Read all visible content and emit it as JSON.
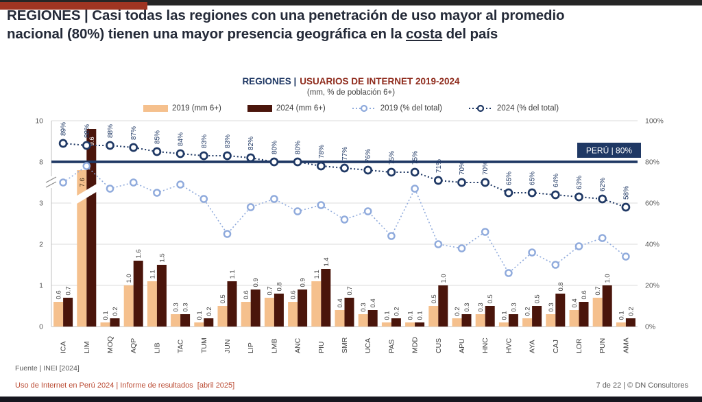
{
  "colors": {
    "top_bar": "#262626",
    "accent_red": "#A03522",
    "title_text": "#242A38",
    "chart_title_navy": "#1F3864",
    "chart_title_red": "#8E2A1B",
    "footer_red": "#BA4A32",
    "footer_gray": "#595959",
    "bottom_bar": "#16161F",
    "gridline": "#DBDBDB",
    "axis_line": "#BFBFBF",
    "value_label": "#404040",
    "pct_label": "#1F3864"
  },
  "header": {
    "line1": "REGIONES | Casi todas las regiones con una penetración de uso mayor al promedio",
    "line2_pre": "nacional (80%) tienen una mayor presencia geográfica en la ",
    "line2_underlined": "costa",
    "line2_post": " del país"
  },
  "chart": {
    "title_prefix": "REGIONES |",
    "title_main": "USUARIOS DE INTERNET 2019-2024",
    "subtitle": "(mm, % de población 6+)"
  },
  "chart_data": {
    "type": "combo-bar-line",
    "title": "REGIONES | USUARIOS DE INTERNET 2019-2024",
    "subtitle": "(mm, % de población 6+)",
    "categories": [
      "ICA",
      "LIM",
      "MOQ",
      "AQP",
      "LIB",
      "TAC",
      "TUM",
      "JUN",
      "LIP",
      "LMB",
      "ANC",
      "PIU",
      "SMR",
      "UCA",
      "PAS",
      "MDD",
      "CUS",
      "APU",
      "HNC",
      "HVC",
      "AYA",
      "CAJ",
      "LOR",
      "PUN",
      "AMA"
    ],
    "series": [
      {
        "name": "2019 (mm 6+)",
        "type": "bar",
        "color": "#F5C08D",
        "values": [
          0.6,
          7.6,
          0.1,
          1.0,
          1.1,
          0.3,
          0.1,
          0.5,
          0.6,
          0.7,
          0.6,
          1.1,
          0.4,
          0.3,
          0.1,
          0.1,
          0.5,
          0.2,
          0.3,
          0.1,
          0.2,
          0.3,
          0.4,
          0.7,
          0.1
        ]
      },
      {
        "name": "2024 (mm 6+)",
        "type": "bar",
        "color": "#4A150B",
        "values": [
          0.7,
          9.6,
          0.2,
          1.6,
          1.5,
          0.3,
          0.2,
          1.1,
          0.9,
          0.8,
          0.9,
          1.4,
          0.7,
          0.4,
          0.2,
          0.1,
          1.0,
          0.3,
          0.5,
          0.3,
          0.5,
          0.8,
          0.6,
          1.0,
          0.2
        ]
      },
      {
        "name": "2019 (% del total)",
        "type": "line",
        "color": "#8FAADC",
        "labels_shown": false,
        "values": [
          70,
          78,
          67,
          70,
          65,
          69,
          62,
          45,
          58,
          62,
          56,
          59,
          52,
          56,
          44,
          67,
          40,
          38,
          46,
          26,
          36,
          30,
          39,
          43,
          34
        ]
      },
      {
        "name": "2024 (% del total)",
        "type": "line",
        "color": "#1F3864",
        "labels_shown": true,
        "values": [
          89,
          88,
          88,
          87,
          85,
          84,
          83,
          83,
          82,
          80,
          80,
          78,
          77,
          76,
          75,
          75,
          71,
          70,
          70,
          65,
          65,
          64,
          63,
          62,
          58
        ]
      }
    ],
    "left_axis": {
      "ticks": [
        "10",
        "8",
        "3",
        "2",
        "1",
        "0"
      ],
      "broken": true,
      "break_between": [
        3,
        8
      ]
    },
    "right_axis": {
      "ticks": [
        "100%",
        "80%",
        "60%",
        "40%",
        "20%",
        "0%"
      ]
    },
    "reference_line": {
      "value_pct": 80,
      "label": "PERÚ | 80%",
      "color": "#1F3864"
    },
    "grid": "horizontal",
    "legend_position": "top"
  },
  "footer": {
    "source": "Fuente | INEI [2024]",
    "report": "Uso de Internet en Perú 2024 | Informe de resultados  [abril 2025]",
    "pagination": "7 de 22 | © DN Consultores"
  }
}
